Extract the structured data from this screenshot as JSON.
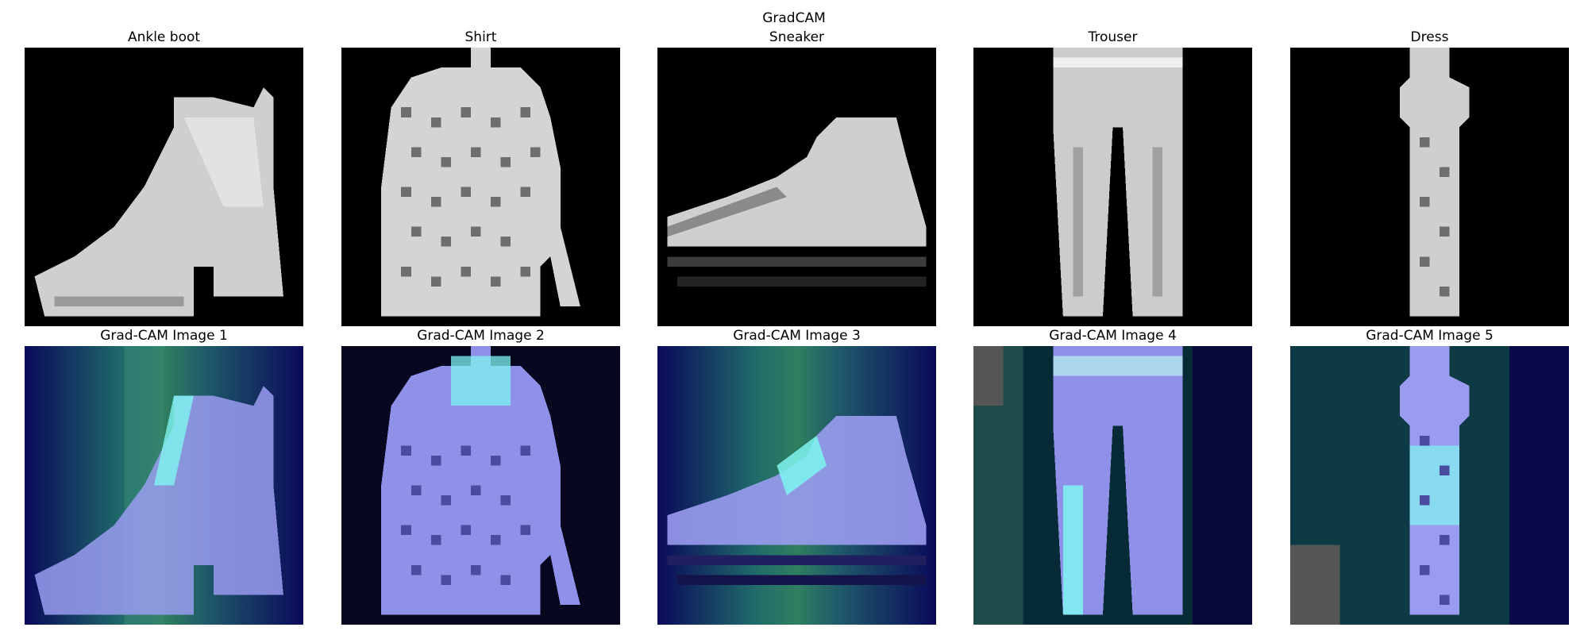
{
  "figure": {
    "title": "GradCAM"
  },
  "top_row": [
    {
      "title": "Ankle boot",
      "item": "ankle-boot"
    },
    {
      "title": "Shirt",
      "item": "shirt"
    },
    {
      "title": "Sneaker",
      "item": "sneaker"
    },
    {
      "title": "Trouser",
      "item": "trouser"
    },
    {
      "title": "Dress",
      "item": "dress"
    }
  ],
  "bottom_row": [
    {
      "title": "Grad-CAM Image 1",
      "item": "ankle-boot"
    },
    {
      "title": "Grad-CAM Image 2",
      "item": "shirt"
    },
    {
      "title": "Grad-CAM Image 3",
      "item": "sneaker"
    },
    {
      "title": "Grad-CAM Image 4",
      "item": "trouser"
    },
    {
      "title": "Grad-CAM Image 5",
      "item": "dress"
    }
  ],
  "colors": {
    "background": "#000000",
    "garment": "#d8d8d8",
    "heatmap_low": "#0a0a5a",
    "heatmap_mid": "#1f6a6a",
    "heatmap_high": "#7ff5f0",
    "overlay_tint": "#8a8cff"
  }
}
